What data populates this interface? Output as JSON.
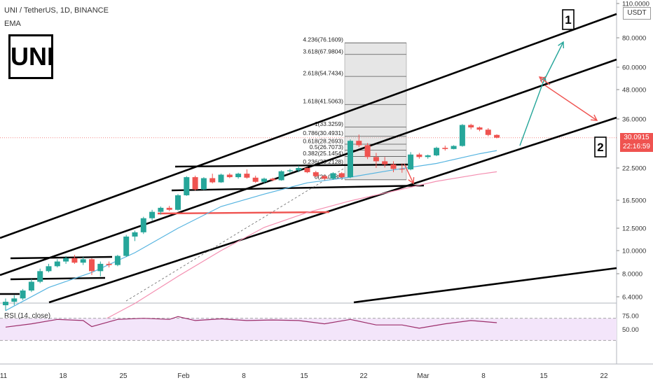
{
  "header": {
    "symbol": "UNI / TetherUS, 1D, BINANCE",
    "indicator": "EMA"
  },
  "logo_text": "UNI",
  "currency_badge": "USDT",
  "price_badge": {
    "price": "30.0915",
    "countdown": "22:16:59"
  },
  "colors": {
    "up": "#26a69a",
    "down": "#ef5350",
    "ema_fast": "#56b4e0",
    "ema_slow": "#f48fb1",
    "rsi_band": "#f3e5fa",
    "rsi_line": "#9c2e6b"
  },
  "chart_data": {
    "type": "candlestick",
    "title": "UNI / TetherUS, 1D, BINANCE",
    "y_scale": "log",
    "y_ticks": [
      "110.0000",
      "80.0000",
      "60.0000",
      "48.0000",
      "36.0000",
      "30.0915",
      "22.5000",
      "16.5000",
      "12.5000",
      "10.0000",
      "8.0000",
      "6.4000"
    ],
    "x_ticks": [
      "11",
      "18",
      "25",
      "Feb",
      "8",
      "15",
      "22",
      "Mar",
      "8",
      "15",
      "22"
    ],
    "candles": [
      {
        "date": "2021-01-11",
        "o": 5.9,
        "h": 6.3,
        "l": 5.6,
        "c": 6.1
      },
      {
        "date": "2021-01-12",
        "o": 6.1,
        "h": 6.5,
        "l": 5.9,
        "c": 6.3
      },
      {
        "date": "2021-01-13",
        "o": 6.3,
        "h": 6.9,
        "l": 6.2,
        "c": 6.8
      },
      {
        "date": "2021-01-14",
        "o": 6.8,
        "h": 7.6,
        "l": 6.7,
        "c": 7.4
      },
      {
        "date": "2021-01-15",
        "o": 7.4,
        "h": 8.4,
        "l": 7.3,
        "c": 8.2
      },
      {
        "date": "2021-01-16",
        "o": 8.2,
        "h": 8.8,
        "l": 8.1,
        "c": 8.6
      },
      {
        "date": "2021-01-17",
        "o": 8.6,
        "h": 9.2,
        "l": 8.5,
        "c": 9.0
      },
      {
        "date": "2021-01-18",
        "o": 9.0,
        "h": 9.5,
        "l": 8.8,
        "c": 9.3
      },
      {
        "date": "2021-01-19",
        "o": 9.3,
        "h": 9.6,
        "l": 8.8,
        "c": 8.9
      },
      {
        "date": "2021-01-20",
        "o": 8.9,
        "h": 9.4,
        "l": 8.7,
        "c": 9.2
      },
      {
        "date": "2021-01-21",
        "o": 9.2,
        "h": 9.3,
        "l": 7.9,
        "c": 8.2
      },
      {
        "date": "2021-01-22",
        "o": 8.2,
        "h": 9.0,
        "l": 7.8,
        "c": 8.8
      },
      {
        "date": "2021-01-23",
        "o": 8.8,
        "h": 9.0,
        "l": 8.5,
        "c": 8.7
      },
      {
        "date": "2021-01-24",
        "o": 8.7,
        "h": 9.6,
        "l": 8.6,
        "c": 9.5
      },
      {
        "date": "2021-01-25",
        "o": 9.5,
        "h": 11.7,
        "l": 9.4,
        "c": 11.5
      },
      {
        "date": "2021-01-26",
        "o": 11.5,
        "h": 12.2,
        "l": 11.0,
        "c": 12.0
      },
      {
        "date": "2021-01-27",
        "o": 12.0,
        "h": 14.0,
        "l": 11.8,
        "c": 13.8
      },
      {
        "date": "2021-01-28",
        "o": 13.8,
        "h": 15.0,
        "l": 13.5,
        "c": 14.7
      },
      {
        "date": "2021-01-29",
        "o": 14.7,
        "h": 15.5,
        "l": 14.3,
        "c": 15.3
      },
      {
        "date": "2021-01-30",
        "o": 15.3,
        "h": 15.6,
        "l": 14.8,
        "c": 15.0
      },
      {
        "date": "2021-01-31",
        "o": 15.0,
        "h": 17.5,
        "l": 14.9,
        "c": 17.3
      },
      {
        "date": "2021-02-01",
        "o": 17.3,
        "h": 20.8,
        "l": 17.2,
        "c": 20.6
      },
      {
        "date": "2021-02-02",
        "o": 20.6,
        "h": 20.9,
        "l": 18.1,
        "c": 18.3
      },
      {
        "date": "2021-02-03",
        "o": 18.3,
        "h": 20.6,
        "l": 18.2,
        "c": 20.4
      },
      {
        "date": "2021-02-04",
        "o": 20.4,
        "h": 21.3,
        "l": 19.4,
        "c": 19.6
      },
      {
        "date": "2021-02-05",
        "o": 19.6,
        "h": 21.3,
        "l": 19.5,
        "c": 21.1
      },
      {
        "date": "2021-02-06",
        "o": 21.1,
        "h": 21.4,
        "l": 20.4,
        "c": 20.6
      },
      {
        "date": "2021-02-07",
        "o": 20.6,
        "h": 21.5,
        "l": 20.3,
        "c": 21.3
      },
      {
        "date": "2021-02-08",
        "o": 21.3,
        "h": 22.2,
        "l": 20.3,
        "c": 20.5
      },
      {
        "date": "2021-02-09",
        "o": 20.5,
        "h": 20.9,
        "l": 19.5,
        "c": 19.7
      },
      {
        "date": "2021-02-10",
        "o": 19.7,
        "h": 20.5,
        "l": 19.4,
        "c": 20.3
      },
      {
        "date": "2021-02-11",
        "o": 20.3,
        "h": 20.5,
        "l": 19.8,
        "c": 20.0
      },
      {
        "date": "2021-02-12",
        "o": 20.0,
        "h": 22.0,
        "l": 19.9,
        "c": 21.8
      },
      {
        "date": "2021-02-13",
        "o": 21.8,
        "h": 22.3,
        "l": 21.4,
        "c": 22.0
      },
      {
        "date": "2021-02-14",
        "o": 22.0,
        "h": 23.0,
        "l": 21.6,
        "c": 22.5
      },
      {
        "date": "2021-02-15",
        "o": 22.5,
        "h": 22.6,
        "l": 21.4,
        "c": 21.6
      },
      {
        "date": "2021-02-16",
        "o": 21.6,
        "h": 21.9,
        "l": 20.6,
        "c": 20.8
      },
      {
        "date": "2021-02-17",
        "o": 20.8,
        "h": 21.0,
        "l": 20.0,
        "c": 20.3
      },
      {
        "date": "2021-02-18",
        "o": 20.3,
        "h": 21.6,
        "l": 20.1,
        "c": 21.4
      },
      {
        "date": "2021-02-19",
        "o": 21.4,
        "h": 21.6,
        "l": 20.4,
        "c": 20.6
      },
      {
        "date": "2021-02-20",
        "o": 20.6,
        "h": 29.6,
        "l": 20.4,
        "c": 29.2
      },
      {
        "date": "2021-02-21",
        "o": 29.2,
        "h": 31.0,
        "l": 27.5,
        "c": 28.0
      },
      {
        "date": "2021-02-22",
        "o": 28.0,
        "h": 28.6,
        "l": 24.5,
        "c": 25.0
      },
      {
        "date": "2021-02-23",
        "o": 25.0,
        "h": 26.0,
        "l": 22.5,
        "c": 24.0
      },
      {
        "date": "2021-02-24",
        "o": 24.0,
        "h": 25.0,
        "l": 22.6,
        "c": 23.3
      },
      {
        "date": "2021-02-25",
        "o": 23.3,
        "h": 24.0,
        "l": 21.6,
        "c": 22.3
      },
      {
        "date": "2021-02-26",
        "o": 22.3,
        "h": 23.5,
        "l": 21.5,
        "c": 22.2
      },
      {
        "date": "2021-02-27",
        "o": 22.2,
        "h": 26.2,
        "l": 22.0,
        "c": 25.6
      },
      {
        "date": "2021-02-28",
        "o": 25.6,
        "h": 26.0,
        "l": 24.6,
        "c": 25.0
      },
      {
        "date": "2021-03-01",
        "o": 25.0,
        "h": 25.6,
        "l": 24.6,
        "c": 25.4
      },
      {
        "date": "2021-03-02",
        "o": 25.4,
        "h": 27.6,
        "l": 25.2,
        "c": 27.3
      },
      {
        "date": "2021-03-03",
        "o": 27.3,
        "h": 27.9,
        "l": 26.6,
        "c": 27.0
      },
      {
        "date": "2021-03-04",
        "o": 27.0,
        "h": 28.0,
        "l": 26.9,
        "c": 27.8
      },
      {
        "date": "2021-03-05",
        "o": 27.8,
        "h": 34.3,
        "l": 27.6,
        "c": 34.0
      },
      {
        "date": "2021-03-06",
        "o": 34.0,
        "h": 34.4,
        "l": 32.6,
        "c": 33.2
      },
      {
        "date": "2021-03-07",
        "o": 33.2,
        "h": 33.5,
        "l": 32.0,
        "c": 32.5
      },
      {
        "date": "2021-03-08",
        "o": 32.5,
        "h": 33.0,
        "l": 30.5,
        "c": 30.9
      },
      {
        "date": "2021-03-09",
        "o": 30.9,
        "h": 31.1,
        "l": 29.9,
        "c": 30.09
      }
    ],
    "ema_fast": [
      [
        0,
        5.6
      ],
      [
        5,
        7.0
      ],
      [
        10,
        8.1
      ],
      [
        15,
        9.8
      ],
      [
        20,
        12.5
      ],
      [
        25,
        15.5
      ],
      [
        30,
        17.5
      ],
      [
        35,
        19.5
      ],
      [
        40,
        20.6
      ],
      [
        45,
        22.1
      ],
      [
        50,
        23.5
      ],
      [
        55,
        25.8
      ],
      [
        57,
        26.6
      ]
    ],
    "ema_slow": [
      [
        9,
        4.6
      ],
      [
        15,
        6.0
      ],
      [
        20,
        7.8
      ],
      [
        25,
        10.0
      ],
      [
        30,
        12.6
      ],
      [
        35,
        14.6
      ],
      [
        40,
        16.4
      ],
      [
        45,
        18.0
      ],
      [
        50,
        19.8
      ],
      [
        55,
        21.2
      ],
      [
        57,
        21.7
      ]
    ],
    "fibonacci": [
      {
        "level": "4.236",
        "price": 76.1609
      },
      {
        "level": "3.618",
        "price": 67.9804
      },
      {
        "level": "2.618",
        "price": 54.7434
      },
      {
        "level": "1.618",
        "price": 41.5063
      },
      {
        "level": "1",
        "price": 33.3259
      },
      {
        "level": "0.786",
        "price": 30.4931
      },
      {
        "level": "0.618",
        "price": 28.2693
      },
      {
        "level": "0.5",
        "price": 26.7073
      },
      {
        "level": "0.382",
        "price": 25.1454
      },
      {
        "level": "0.236",
        "price": 23.2128
      },
      {
        "level": "0",
        "price": 20.0888
      }
    ],
    "rsi": {
      "label": "RSI (14, close)",
      "ticks": [
        "75.00",
        "50.00"
      ],
      "band": [
        30,
        70
      ],
      "values": [
        [
          0,
          54
        ],
        [
          3,
          60
        ],
        [
          6,
          68
        ],
        [
          9,
          66
        ],
        [
          10,
          55
        ],
        [
          13,
          68
        ],
        [
          16,
          70
        ],
        [
          19,
          68
        ],
        [
          20,
          73
        ],
        [
          22,
          66
        ],
        [
          25,
          69
        ],
        [
          28,
          66
        ],
        [
          31,
          67
        ],
        [
          34,
          66
        ],
        [
          37,
          60
        ],
        [
          40,
          68
        ],
        [
          43,
          58
        ],
        [
          46,
          58
        ],
        [
          48,
          52
        ],
        [
          51,
          60
        ],
        [
          54,
          66
        ],
        [
          57,
          62
        ]
      ]
    },
    "annotations": [
      "1",
      "2"
    ]
  }
}
